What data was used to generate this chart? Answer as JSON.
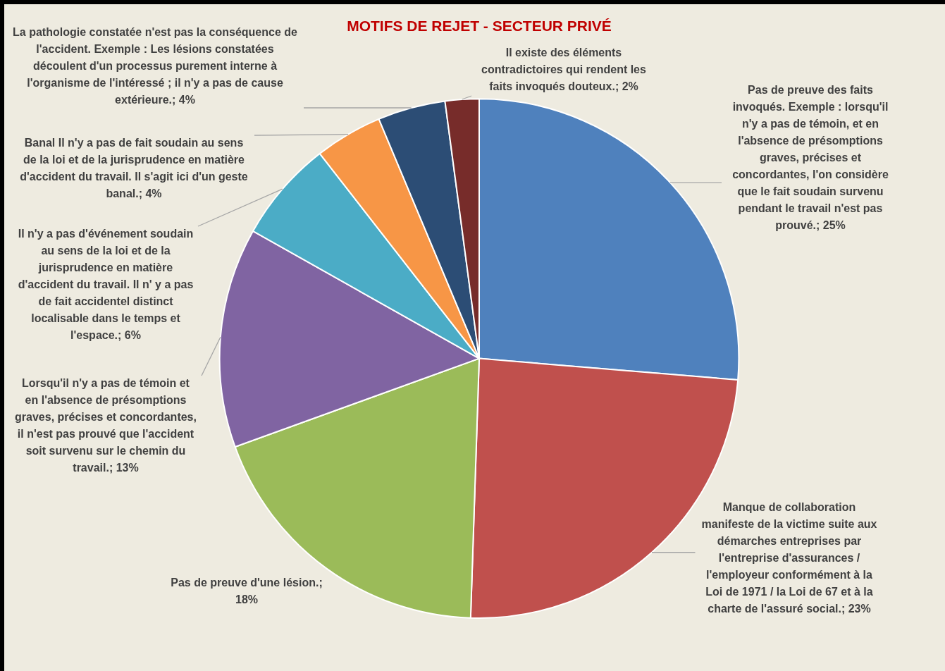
{
  "chart_data": {
    "type": "pie",
    "title": "MOTIFS DE REJET - SECTEUR PRIVÉ",
    "categories": [
      "Pas de preuve des faits invoqués. Exemple :   lorsqu'il n'y a pas de témoin,  et en l'absence de présomptions graves, précises et concordantes,  l'on considère que  le fait soudain survenu pendant le travail n'est pas prouvé.",
      "Manque de collaboration manifeste de la victime suite aux démarches entreprises par l'entreprise d'assurances / l'employeur conformément à la Loi de 1971 / la Loi de 67 et à la charte de l'assuré social.",
      "Pas de preuve d'une lésion.",
      "Lorsqu'il n'y a pas de témoin et en l'absence de présomptions graves, précises et concordantes, il n'est pas prouvé que l'accident soit survenu sur le chemin du travail.",
      "Il n'y a pas d'événement soudain au sens de la loi et de la jurisprudence en matière d'accident du travail.  Il n' y a pas de fait accidentel distinct localisable dans le temps et l'espace.",
      "Banal Il n'y  a pas de fait soudain au sens de la loi et de la jurisprudence en matière d'accident du travail.  Il s'agit ici d'un geste banal.",
      "La pathologie constatée n'est pas  la conséquence de l'accident. Exemple :  Les lésions constatées découlent d'un processus purement interne à l'organisme de l'intéressé ; il n'y a pas de cause extérieure.",
      "Il existe des éléments contradictoires qui rendent les faits invoqués douteux."
    ],
    "values": [
      25,
      23,
      18,
      13,
      6,
      4,
      4,
      2
    ],
    "value_labels": [
      "; 25%",
      "; 23%",
      "; 18%",
      "; 13%",
      "; 6%",
      "; 4%",
      "; 4%",
      "; 2%"
    ],
    "colors": [
      "#4f81bd",
      "#c0504d",
      "#9bbb59",
      "#8064a2",
      "#4bacc6",
      "#f79646",
      "#2c4d75",
      "#772c2a"
    ],
    "legend": false
  }
}
